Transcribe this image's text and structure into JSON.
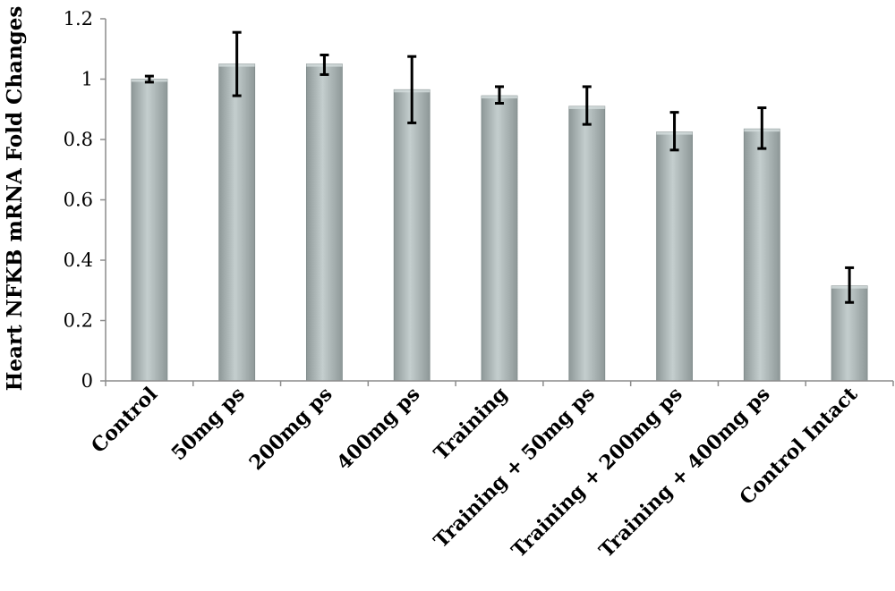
{
  "chart_data": {
    "type": "bar",
    "title": "",
    "xlabel": "",
    "ylabel": "Heart NFKB mRNA Fold Changes",
    "ylim": [
      0,
      1.2
    ],
    "yticks": [
      "0",
      "0.2",
      "0.4",
      "0.6",
      "0.8",
      "1",
      "1.2"
    ],
    "grid": false,
    "legend": "none",
    "categories": [
      "Control",
      "50mg ps",
      "200mg ps",
      "400mg ps",
      "Training",
      "Training + 50mg ps",
      "Training + 200mg ps",
      "Training + 400mg ps",
      "Control Intact"
    ],
    "values": [
      1.0,
      1.05,
      1.05,
      0.965,
      0.945,
      0.91,
      0.825,
      0.835,
      0.315
    ],
    "error_low": [
      0.99,
      0.945,
      1.015,
      0.855,
      0.92,
      0.85,
      0.765,
      0.77,
      0.26
    ],
    "error_high": [
      1.01,
      1.155,
      1.08,
      1.075,
      0.975,
      0.975,
      0.89,
      0.905,
      0.375
    ],
    "colors": {
      "bar_dark": "#8e9898",
      "bar_light": "#c2cccc",
      "axis": "#8c8c8c",
      "error": "#000000"
    }
  }
}
